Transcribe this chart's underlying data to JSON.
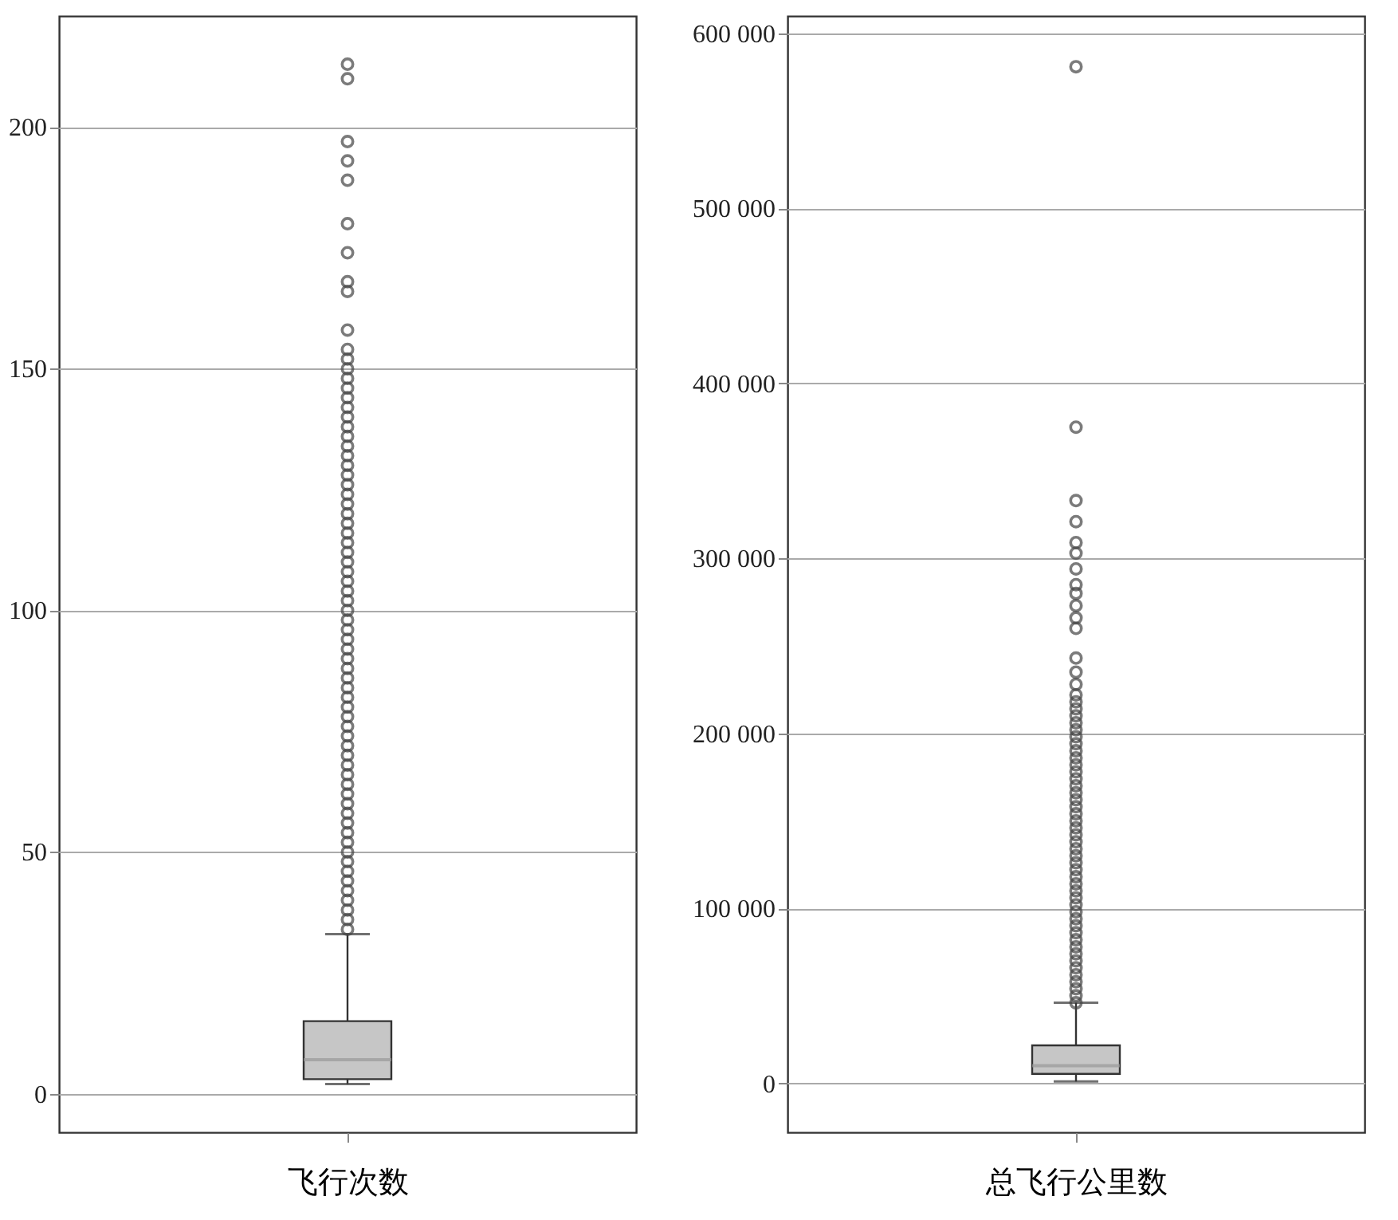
{
  "chart_data": [
    {
      "type": "box",
      "categories": [
        null
      ],
      "xlabel": "飞行次数",
      "ylim": [
        -8,
        223
      ],
      "yticks": [
        0,
        50,
        100,
        150,
        200
      ],
      "grid": "y",
      "marker": "circle",
      "boxes": [
        {
          "low": 2,
          "q1": 3,
          "median": 7,
          "q3": 15,
          "high": 33,
          "outliers": [
            213,
            210,
            197,
            193,
            189,
            180,
            174,
            168,
            166,
            158,
            154,
            152,
            150,
            148,
            146,
            144,
            142,
            140,
            138,
            136,
            134,
            132,
            130,
            128,
            126,
            124,
            122,
            120,
            118,
            116,
            114,
            112,
            110,
            108,
            106,
            104,
            102,
            100,
            98,
            96,
            94,
            92,
            90,
            88,
            86,
            84,
            82,
            80,
            78,
            76,
            74,
            72,
            70,
            68,
            66,
            64,
            62,
            60,
            58,
            56,
            54,
            52,
            50,
            48,
            46,
            44,
            42,
            40,
            38,
            36,
            34
          ]
        }
      ]
    },
    {
      "type": "box",
      "categories": [
        null
      ],
      "xlabel": "总飞行公里数",
      "ylim": [
        -28000,
        610000
      ],
      "yticks": [
        0,
        {
          "value": 100000,
          "label": "100 000"
        },
        {
          "value": 200000,
          "label": "200 000"
        },
        {
          "value": 300000,
          "label": "300 000"
        },
        {
          "value": 400000,
          "label": "400 000"
        },
        {
          "value": 500000,
          "label": "500 000"
        },
        {
          "value": 600000,
          "label": "600 000"
        }
      ],
      "grid": "y",
      "marker": "circle",
      "boxes": [
        {
          "low": 1000,
          "q1": 5400,
          "median": 10000,
          "q3": 21700,
          "high": 46000,
          "outliers": [
            581000,
            375000,
            333000,
            321000,
            309000,
            303000,
            294000,
            285000,
            280000,
            273000,
            266000,
            260000,
            243000,
            235000,
            228000,
            222000,
            218000,
            214000,
            210000,
            206000,
            202000,
            198000,
            194000,
            190000,
            186000,
            182000,
            178000,
            174000,
            170000,
            166000,
            162000,
            158000,
            154000,
            150000,
            146000,
            142000,
            138000,
            134000,
            130000,
            126000,
            122000,
            118000,
            114000,
            110000,
            106000,
            102000,
            98000,
            94000,
            90000,
            86000,
            82000,
            78000,
            74000,
            70000,
            66000,
            62000,
            58000,
            54000,
            50000,
            46000
          ]
        }
      ]
    }
  ]
}
